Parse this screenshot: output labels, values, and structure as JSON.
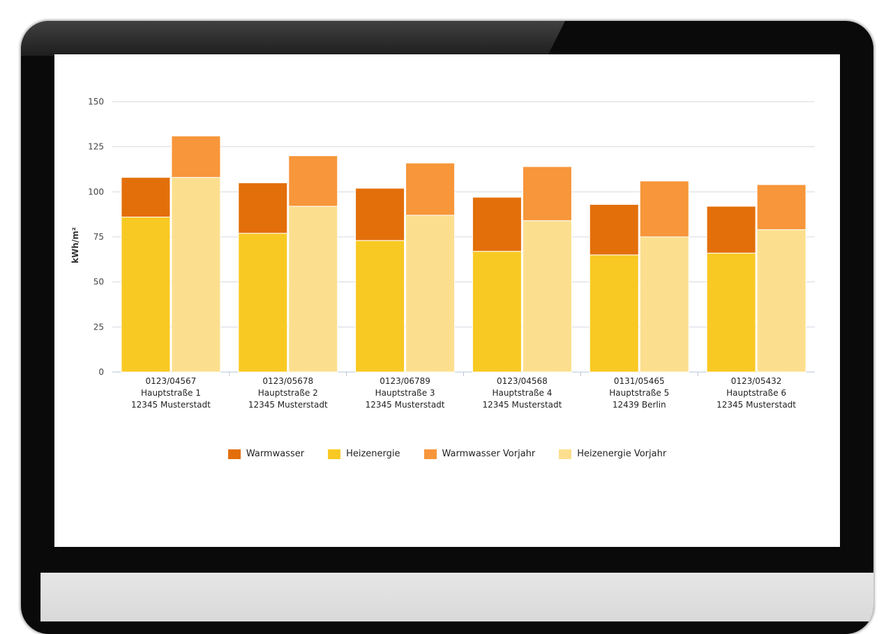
{
  "chart_data": {
    "type": "bar",
    "stacked": true,
    "title": "",
    "xlabel": "",
    "ylabel": "kWh/m²",
    "ylim": [
      0,
      150
    ],
    "yticks": [
      0,
      25,
      50,
      75,
      100,
      125,
      150
    ],
    "categories": [
      [
        "0123/04567",
        "Hauptstraße 1",
        "12345 Musterstadt"
      ],
      [
        "0123/05678",
        "Hauptstraße 2",
        "12345 Musterstadt"
      ],
      [
        "0123/06789",
        "Hauptstraße 3",
        "12345 Musterstadt"
      ],
      [
        "0123/04568",
        "Hauptstraße 4",
        "12345 Musterstadt"
      ],
      [
        "0131/05465",
        "Hauptstraße 5",
        "12439 Berlin"
      ],
      [
        "0123/05432",
        "Hauptstraße 6",
        "12345 Musterstadt"
      ]
    ],
    "series": [
      {
        "name": "Warmwasser",
        "stack": "current",
        "color": "#E36F0A",
        "values": [
          22,
          28,
          29,
          30,
          28,
          26
        ]
      },
      {
        "name": "Heizenergie",
        "stack": "current",
        "color": "#F8C923",
        "values": [
          86,
          77,
          73,
          67,
          65,
          66
        ]
      },
      {
        "name": "Warmwasser Vorjahr",
        "stack": "previous",
        "color": "#F7963A",
        "values": [
          23,
          28,
          29,
          30,
          31,
          25
        ]
      },
      {
        "name": "Heizenergie Vorjahr",
        "stack": "previous",
        "color": "#FCDF8E",
        "values": [
          108,
          92,
          87,
          84,
          75,
          79
        ]
      }
    ],
    "legend_position": "bottom-center",
    "grid": true
  }
}
